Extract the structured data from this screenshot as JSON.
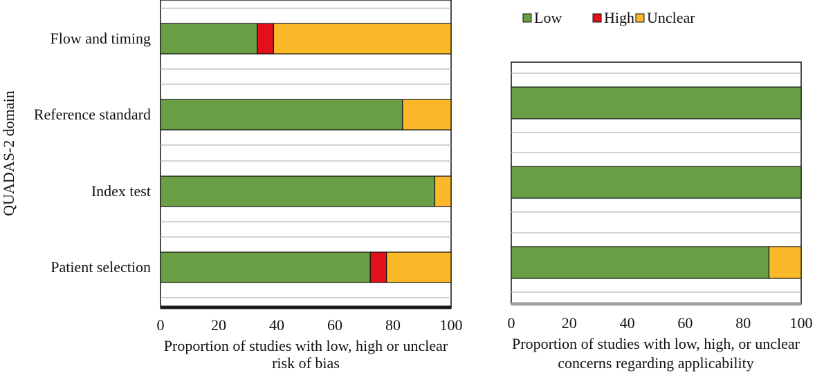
{
  "chart_data": [
    {
      "type": "bar",
      "stacked": true,
      "orientation": "horizontal",
      "ylabel": "QUADAS-2 domain",
      "xlabel_lines": [
        "Proportion of studies with low, high or unclear",
        "risk of bias"
      ],
      "categories": [
        "Patient selection",
        "Index test",
        "Reference standard",
        "Flow and timing"
      ],
      "xlim": [
        0,
        100
      ],
      "x_ticks": [
        "0",
        "20",
        "40",
        "60",
        "80",
        "100"
      ],
      "series": [
        {
          "name": "Low",
          "color": "#6a9e45",
          "values": [
            72.2,
            94.4,
            83.3,
            33.3
          ]
        },
        {
          "name": "High",
          "color": "#e2101a",
          "values": [
            5.6,
            0,
            0,
            5.6
          ]
        },
        {
          "name": "Unclear",
          "color": "#fbb829",
          "values": [
            22.2,
            5.6,
            16.7,
            61.1
          ]
        }
      ]
    },
    {
      "type": "bar",
      "stacked": true,
      "orientation": "horizontal",
      "xlabel_lines": [
        "Proportion of studies with low, high, or unclear",
        "concerns regarding applicability"
      ],
      "categories": [
        "Patient selection",
        "Index test",
        "Reference standard"
      ],
      "xlim": [
        0,
        100
      ],
      "x_ticks": [
        "0",
        "20",
        "40",
        "60",
        "80",
        "100"
      ],
      "series": [
        {
          "name": "Low",
          "color": "#6a9e45",
          "values": [
            88.9,
            100,
            100
          ]
        },
        {
          "name": "High",
          "color": "#e2101a",
          "values": [
            0,
            0,
            0
          ]
        },
        {
          "name": "Unclear",
          "color": "#fbb829",
          "values": [
            11.1,
            0,
            0
          ]
        }
      ]
    }
  ],
  "legend": {
    "placement": "top-right",
    "items": [
      {
        "label": "Low",
        "color": "#6a9e45"
      },
      {
        "label": "High",
        "color": "#e2101a"
      },
      {
        "label": "Unclear",
        "color": "#fbb829"
      }
    ]
  }
}
